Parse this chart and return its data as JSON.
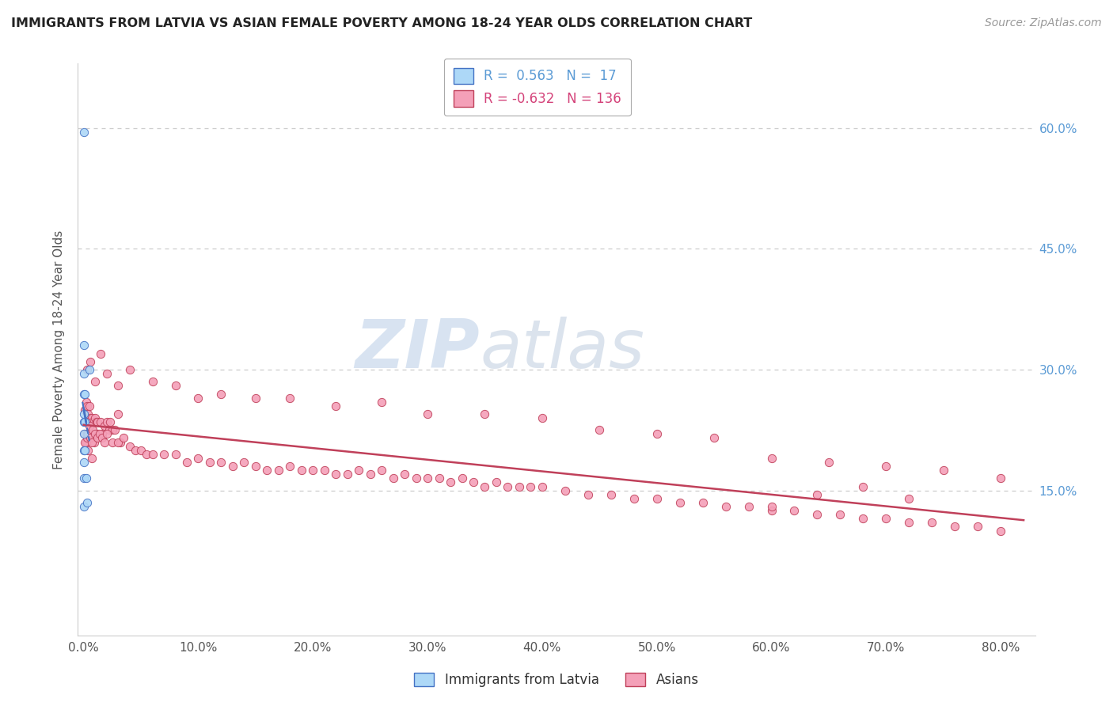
{
  "title": "IMMIGRANTS FROM LATVIA VS ASIAN FEMALE POVERTY AMONG 18-24 YEAR OLDS CORRELATION CHART",
  "source": "Source: ZipAtlas.com",
  "ylabel": "Female Poverty Among 18-24 Year Olds",
  "r_latvia": 0.563,
  "n_latvia": 17,
  "r_asian": -0.632,
  "n_asian": 136,
  "color_latvia": "#ADD8F7",
  "color_asian": "#F4A0B8",
  "trend_color_latvia": "#4472C4",
  "trend_color_asian": "#C0405A",
  "xlim": [
    -0.005,
    0.83
  ],
  "ylim": [
    -0.03,
    0.68
  ],
  "xticks": [
    0.0,
    0.1,
    0.2,
    0.3,
    0.4,
    0.5,
    0.6,
    0.7,
    0.8
  ],
  "yticks": [
    0.0,
    0.15,
    0.3,
    0.45,
    0.6
  ],
  "ytick_labels": [
    "",
    "15.0%",
    "30.0%",
    "45.0%",
    "60.0%"
  ],
  "watermark_zip": "ZIP",
  "watermark_atlas": "atlas",
  "latvia_x": [
    0.0,
    0.0,
    0.0,
    0.0,
    0.0,
    0.0,
    0.0,
    0.0,
    0.0,
    0.0,
    0.0,
    0.001,
    0.001,
    0.001,
    0.002,
    0.003,
    0.005
  ],
  "latvia_y": [
    0.595,
    0.33,
    0.295,
    0.27,
    0.245,
    0.235,
    0.22,
    0.2,
    0.185,
    0.165,
    0.13,
    0.27,
    0.235,
    0.2,
    0.165,
    0.135,
    0.3
  ],
  "asian_x": [
    0.001,
    0.001,
    0.002,
    0.002,
    0.003,
    0.003,
    0.004,
    0.004,
    0.005,
    0.005,
    0.006,
    0.006,
    0.007,
    0.007,
    0.008,
    0.009,
    0.01,
    0.011,
    0.012,
    0.013,
    0.015,
    0.016,
    0.018,
    0.02,
    0.022,
    0.023,
    0.025,
    0.027,
    0.03,
    0.032,
    0.001,
    0.002,
    0.003,
    0.004,
    0.005,
    0.006,
    0.007,
    0.008,
    0.01,
    0.012,
    0.014,
    0.016,
    0.018,
    0.02,
    0.025,
    0.03,
    0.035,
    0.04,
    0.045,
    0.05,
    0.055,
    0.06,
    0.07,
    0.08,
    0.09,
    0.1,
    0.11,
    0.12,
    0.13,
    0.14,
    0.15,
    0.16,
    0.17,
    0.18,
    0.19,
    0.2,
    0.21,
    0.22,
    0.23,
    0.24,
    0.25,
    0.26,
    0.27,
    0.28,
    0.29,
    0.3,
    0.31,
    0.32,
    0.33,
    0.34,
    0.35,
    0.36,
    0.37,
    0.38,
    0.39,
    0.4,
    0.42,
    0.44,
    0.46,
    0.48,
    0.5,
    0.52,
    0.54,
    0.56,
    0.58,
    0.6,
    0.62,
    0.64,
    0.66,
    0.68,
    0.7,
    0.72,
    0.74,
    0.76,
    0.78,
    0.8,
    0.003,
    0.006,
    0.01,
    0.015,
    0.02,
    0.03,
    0.04,
    0.06,
    0.08,
    0.1,
    0.12,
    0.15,
    0.18,
    0.22,
    0.26,
    0.3,
    0.35,
    0.4,
    0.45,
    0.5,
    0.55,
    0.6,
    0.65,
    0.7,
    0.75,
    0.8,
    0.72,
    0.68,
    0.64,
    0.6
  ],
  "asian_y": [
    0.25,
    0.22,
    0.26,
    0.21,
    0.255,
    0.22,
    0.245,
    0.2,
    0.255,
    0.215,
    0.24,
    0.22,
    0.24,
    0.19,
    0.235,
    0.21,
    0.24,
    0.235,
    0.235,
    0.22,
    0.235,
    0.22,
    0.23,
    0.235,
    0.225,
    0.235,
    0.225,
    0.225,
    0.245,
    0.21,
    0.21,
    0.235,
    0.215,
    0.22,
    0.23,
    0.215,
    0.21,
    0.225,
    0.22,
    0.215,
    0.22,
    0.215,
    0.21,
    0.22,
    0.21,
    0.21,
    0.215,
    0.205,
    0.2,
    0.2,
    0.195,
    0.195,
    0.195,
    0.195,
    0.185,
    0.19,
    0.185,
    0.185,
    0.18,
    0.185,
    0.18,
    0.175,
    0.175,
    0.18,
    0.175,
    0.175,
    0.175,
    0.17,
    0.17,
    0.175,
    0.17,
    0.175,
    0.165,
    0.17,
    0.165,
    0.165,
    0.165,
    0.16,
    0.165,
    0.16,
    0.155,
    0.16,
    0.155,
    0.155,
    0.155,
    0.155,
    0.15,
    0.145,
    0.145,
    0.14,
    0.14,
    0.135,
    0.135,
    0.13,
    0.13,
    0.125,
    0.125,
    0.12,
    0.12,
    0.115,
    0.115,
    0.11,
    0.11,
    0.105,
    0.105,
    0.1,
    0.3,
    0.31,
    0.285,
    0.32,
    0.295,
    0.28,
    0.3,
    0.285,
    0.28,
    0.265,
    0.27,
    0.265,
    0.265,
    0.255,
    0.26,
    0.245,
    0.245,
    0.24,
    0.225,
    0.22,
    0.215,
    0.19,
    0.185,
    0.18,
    0.175,
    0.165,
    0.14,
    0.155,
    0.145,
    0.13
  ]
}
